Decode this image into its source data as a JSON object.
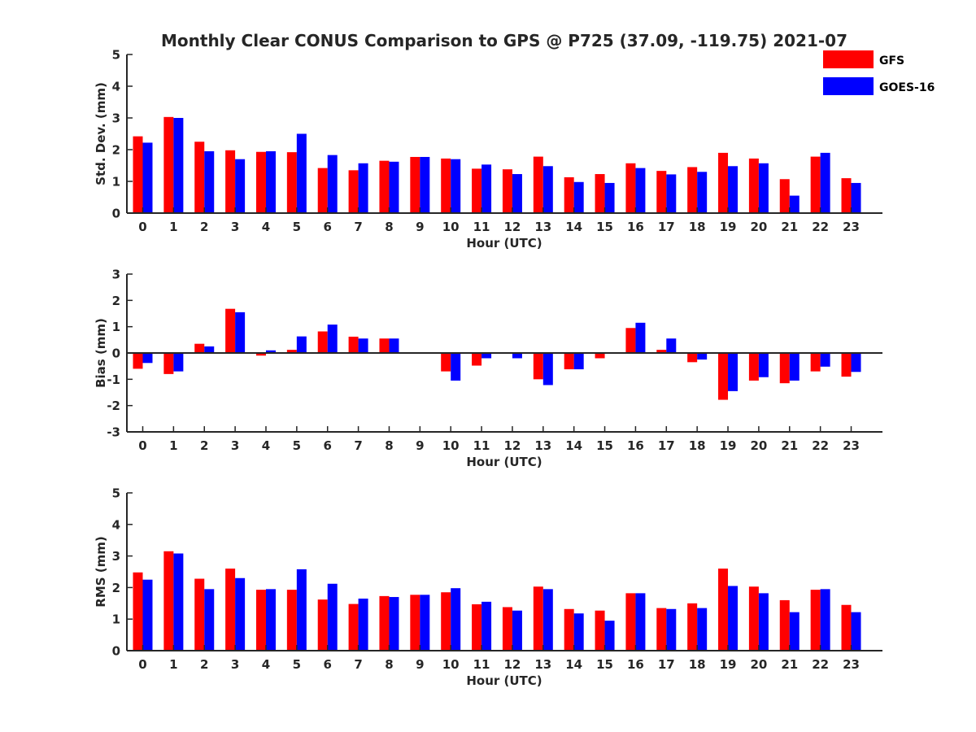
{
  "figure": {
    "title": "Monthly Clear CONUS Comparison to GPS @ P725 (37.09, -119.75) 2021-07"
  },
  "legend": {
    "placement": "top-right",
    "entries": [
      {
        "name": "GFS",
        "color": "#ff0000"
      },
      {
        "name": "GOES-16",
        "color": "#0000ff"
      }
    ]
  },
  "chart_data": [
    {
      "type": "bar",
      "title": "Monthly Clear CONUS Comparison to GPS @ P725 (37.09, -119.75) 2021-07",
      "xlabel": "Hour (UTC)",
      "ylabel": "Std. Dev. (mm)",
      "ylim": [
        0,
        5
      ],
      "yticks": [
        0,
        1,
        2,
        3,
        4,
        5
      ],
      "categories": [
        "0",
        "1",
        "2",
        "3",
        "4",
        "5",
        "6",
        "7",
        "8",
        "9",
        "10",
        "11",
        "12",
        "13",
        "14",
        "15",
        "16",
        "17",
        "18",
        "19",
        "20",
        "21",
        "22",
        "23"
      ],
      "series": [
        {
          "name": "GFS",
          "color": "#ff0000",
          "values": [
            2.42,
            3.03,
            2.25,
            1.98,
            1.93,
            1.92,
            1.42,
            1.35,
            1.65,
            1.77,
            1.72,
            1.4,
            1.38,
            1.78,
            1.13,
            1.23,
            1.57,
            1.33,
            1.45,
            1.9,
            1.72,
            1.07,
            1.78,
            1.1
          ]
        },
        {
          "name": "GOES-16",
          "color": "#0000ff",
          "values": [
            2.22,
            3.0,
            1.95,
            1.7,
            1.95,
            2.5,
            1.83,
            1.57,
            1.62,
            1.77,
            1.7,
            1.53,
            1.23,
            1.48,
            0.98,
            0.95,
            1.42,
            1.22,
            1.3,
            1.48,
            1.57,
            0.55,
            1.9,
            0.95
          ]
        }
      ]
    },
    {
      "type": "bar",
      "title": "",
      "xlabel": "Hour (UTC)",
      "ylabel": "Bias (mm)",
      "ylim": [
        -3,
        3
      ],
      "yticks": [
        -3,
        -2,
        -1,
        0,
        1,
        2,
        3
      ],
      "zero_line": true,
      "categories": [
        "0",
        "1",
        "2",
        "3",
        "4",
        "5",
        "6",
        "7",
        "8",
        "9",
        "10",
        "11",
        "12",
        "13",
        "14",
        "15",
        "16",
        "17",
        "18",
        "19",
        "20",
        "21",
        "22",
        "23"
      ],
      "series": [
        {
          "name": "GFS",
          "color": "#ff0000",
          "values": [
            -0.6,
            -0.8,
            0.35,
            1.68,
            -0.1,
            0.12,
            0.82,
            0.62,
            0.55,
            0.0,
            -0.7,
            -0.48,
            0.0,
            -1.0,
            -0.62,
            -0.2,
            0.95,
            0.12,
            -0.35,
            -1.78,
            -1.05,
            -1.15,
            -0.7,
            -0.9
          ]
        },
        {
          "name": "GOES-16",
          "color": "#0000ff",
          "values": [
            -0.38,
            -0.7,
            0.25,
            1.55,
            0.1,
            0.63,
            1.08,
            0.55,
            0.55,
            0.0,
            -1.05,
            -0.2,
            -0.2,
            -1.22,
            -0.62,
            0.03,
            1.15,
            0.55,
            -0.25,
            -1.45,
            -0.92,
            -1.05,
            -0.52,
            -0.72
          ]
        }
      ]
    },
    {
      "type": "bar",
      "title": "",
      "xlabel": "Hour (UTC)",
      "ylabel": "RMS (mm)",
      "ylim": [
        0,
        5
      ],
      "yticks": [
        0,
        1,
        2,
        3,
        4,
        5
      ],
      "categories": [
        "0",
        "1",
        "2",
        "3",
        "4",
        "5",
        "6",
        "7",
        "8",
        "9",
        "10",
        "11",
        "12",
        "13",
        "14",
        "15",
        "16",
        "17",
        "18",
        "19",
        "20",
        "21",
        "22",
        "23"
      ],
      "series": [
        {
          "name": "GFS",
          "color": "#ff0000",
          "values": [
            2.48,
            3.15,
            2.28,
            2.6,
            1.93,
            1.93,
            1.62,
            1.48,
            1.73,
            1.77,
            1.85,
            1.47,
            1.38,
            2.03,
            1.32,
            1.27,
            1.82,
            1.35,
            1.5,
            2.6,
            2.03,
            1.6,
            1.93,
            1.45
          ]
        },
        {
          "name": "GOES-16",
          "color": "#0000ff",
          "values": [
            2.25,
            3.08,
            1.95,
            2.3,
            1.95,
            2.58,
            2.12,
            1.65,
            1.7,
            1.77,
            1.98,
            1.55,
            1.27,
            1.95,
            1.18,
            0.95,
            1.82,
            1.32,
            1.35,
            2.05,
            1.82,
            1.22,
            1.95,
            1.22
          ]
        }
      ]
    }
  ]
}
